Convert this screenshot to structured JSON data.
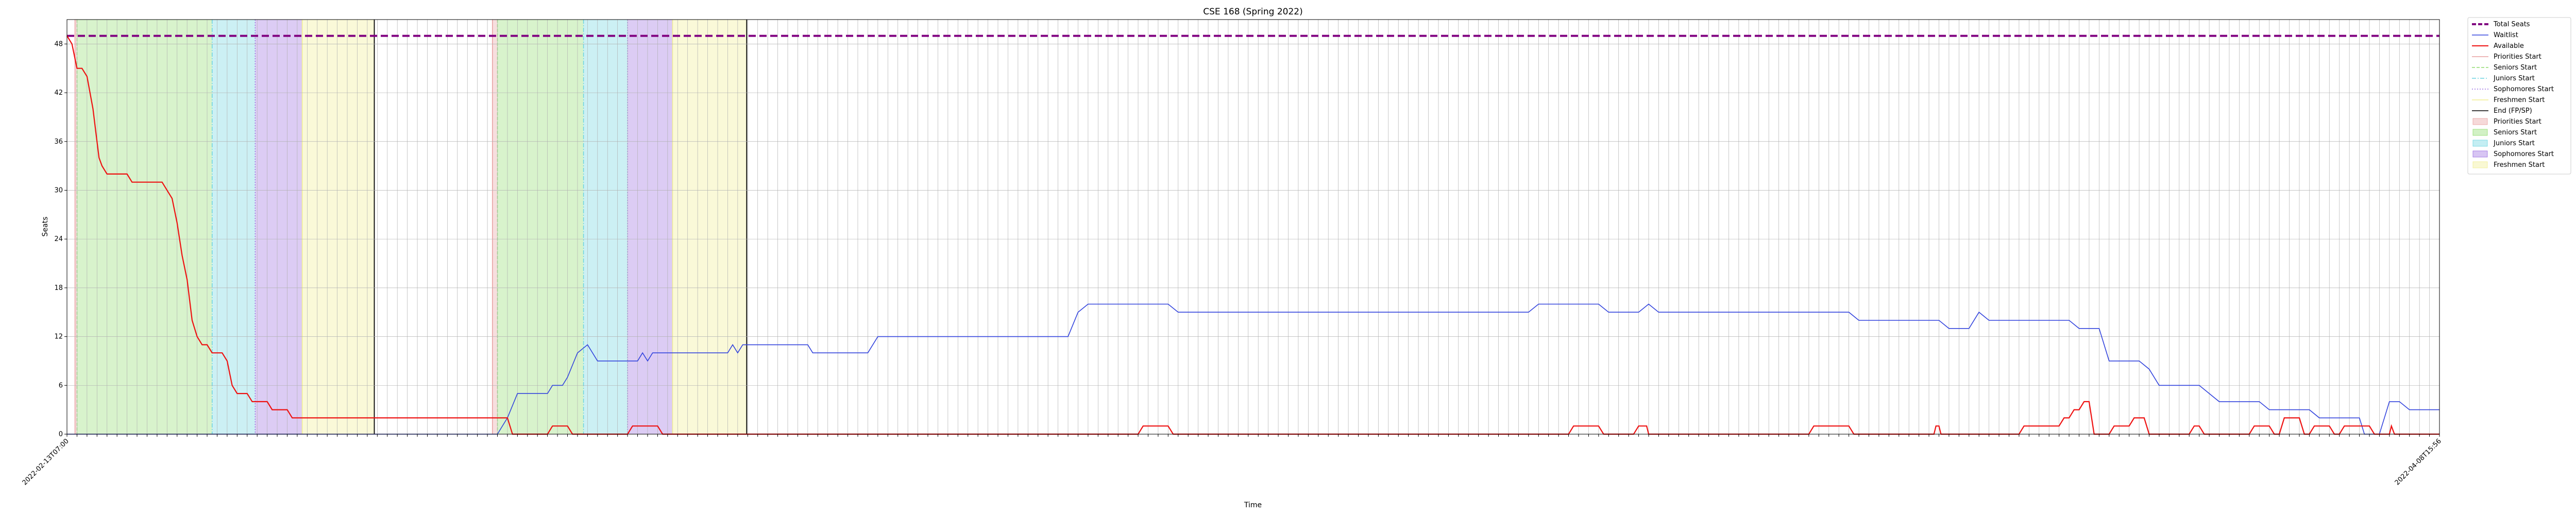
{
  "chart_data": {
    "type": "line",
    "title": "CSE 168 (Spring 2022)",
    "xlabel": "Time",
    "ylabel": "Seats",
    "ylim": [
      0,
      51
    ],
    "yticks": [
      0,
      6,
      12,
      18,
      24,
      30,
      36,
      42,
      48
    ],
    "grid": true,
    "legend_position": "outside-right",
    "x_axis": {
      "kind": "sequential-timestamps",
      "start_label": "2022-02-13T07:00",
      "end_label": "2022-04-08T15:56",
      "tick_count": 238,
      "xlim": [
        0,
        237
      ],
      "note_on_labels": "rotated timestamp tick labels (unreadable at this resolution)"
    },
    "colors": {
      "total_seats": "#800080",
      "waitlist": "#3344dd",
      "available": "#ee1111",
      "priorities": "#e8a0a0",
      "seniors": "#8fdc6e",
      "juniors": "#6cd4e0",
      "sophomores": "#9a6ee0",
      "freshmen": "#f0ee90",
      "end": "#000000",
      "grid": "#b0b0b0"
    },
    "series": [
      {
        "name": "Total Seats",
        "style": "dashed",
        "points": [
          [
            0,
            49
          ],
          [
            237,
            49
          ]
        ]
      },
      {
        "name": "Waitlist",
        "style": "solid",
        "points": [
          [
            0,
            0
          ],
          [
            43,
            0
          ],
          [
            44,
            2
          ],
          [
            45,
            5
          ],
          [
            48,
            5
          ],
          [
            48.5,
            6
          ],
          [
            49.5,
            6
          ],
          [
            50,
            7
          ],
          [
            51,
            10
          ],
          [
            52,
            11
          ],
          [
            53,
            9
          ],
          [
            57,
            9
          ],
          [
            57.5,
            10
          ],
          [
            58,
            9
          ],
          [
            58.5,
            10
          ],
          [
            66,
            10
          ],
          [
            66.5,
            11
          ],
          [
            67,
            10
          ],
          [
            67.5,
            11
          ],
          [
            74,
            11
          ],
          [
            74.5,
            10
          ],
          [
            80,
            10
          ],
          [
            81,
            12
          ],
          [
            100,
            12
          ],
          [
            101,
            15
          ],
          [
            102,
            16
          ],
          [
            110,
            16
          ],
          [
            111,
            15
          ],
          [
            146,
            15
          ],
          [
            147,
            16
          ],
          [
            153,
            16
          ],
          [
            154,
            15
          ],
          [
            157,
            15
          ],
          [
            158,
            16
          ],
          [
            159,
            15
          ],
          [
            178,
            15
          ],
          [
            179,
            14
          ],
          [
            187,
            14
          ],
          [
            188,
            13
          ],
          [
            190,
            13
          ],
          [
            191,
            15
          ],
          [
            192,
            14
          ],
          [
            200,
            14
          ],
          [
            201,
            13
          ],
          [
            203,
            13
          ],
          [
            204,
            9
          ],
          [
            207,
            9
          ],
          [
            208,
            8
          ],
          [
            209,
            6
          ],
          [
            213,
            6
          ],
          [
            214,
            5
          ],
          [
            215,
            4
          ],
          [
            219,
            4
          ],
          [
            220,
            3
          ],
          [
            224,
            3
          ],
          [
            225,
            2
          ],
          [
            229,
            2
          ],
          [
            229.5,
            0
          ],
          [
            231,
            0
          ],
          [
            232,
            4
          ],
          [
            233,
            4
          ],
          [
            234,
            3
          ],
          [
            237,
            3
          ]
        ]
      },
      {
        "name": "Available",
        "style": "solid",
        "points": [
          [
            0,
            49
          ],
          [
            0.5,
            48
          ],
          [
            1,
            45
          ],
          [
            1.5,
            45
          ],
          [
            2,
            44
          ],
          [
            2.3,
            42
          ],
          [
            2.6,
            40
          ],
          [
            2.9,
            37
          ],
          [
            3.2,
            34
          ],
          [
            3.5,
            33
          ],
          [
            4,
            32
          ],
          [
            6,
            32
          ],
          [
            6.5,
            31
          ],
          [
            9,
            31
          ],
          [
            9.5,
            31
          ],
          [
            10.5,
            29
          ],
          [
            11,
            26
          ],
          [
            11.5,
            22
          ],
          [
            12,
            19
          ],
          [
            12.5,
            14
          ],
          [
            13,
            12
          ],
          [
            13.5,
            11
          ],
          [
            14,
            11
          ],
          [
            14.5,
            10
          ],
          [
            15.5,
            10
          ],
          [
            16,
            9
          ],
          [
            16.5,
            6
          ],
          [
            17,
            5
          ],
          [
            18,
            5
          ],
          [
            18.5,
            4
          ],
          [
            20,
            4
          ],
          [
            20.5,
            3
          ],
          [
            22,
            3
          ],
          [
            22.5,
            2
          ],
          [
            44,
            2
          ],
          [
            44.5,
            0
          ],
          [
            48,
            0
          ],
          [
            48.5,
            1
          ],
          [
            50,
            1
          ],
          [
            50.5,
            0
          ],
          [
            56,
            0
          ],
          [
            56.5,
            1
          ],
          [
            59,
            1
          ],
          [
            59.5,
            0
          ],
          [
            107,
            0
          ],
          [
            107.5,
            1
          ],
          [
            110,
            1
          ],
          [
            110.5,
            0
          ],
          [
            150,
            0
          ],
          [
            150.5,
            1
          ],
          [
            153,
            1
          ],
          [
            153.5,
            0
          ],
          [
            156.5,
            0
          ],
          [
            157,
            1
          ],
          [
            157.8,
            1
          ],
          [
            158,
            0
          ],
          [
            174,
            0
          ],
          [
            174.5,
            1
          ],
          [
            178,
            1
          ],
          [
            178.5,
            0
          ],
          [
            186.5,
            0
          ],
          [
            186.7,
            1
          ],
          [
            187,
            1
          ],
          [
            187.2,
            0
          ],
          [
            195,
            0
          ],
          [
            195.5,
            1
          ],
          [
            199,
            1
          ],
          [
            199.5,
            2
          ],
          [
            200,
            2
          ],
          [
            200.5,
            3
          ],
          [
            201,
            3
          ],
          [
            201.5,
            4
          ],
          [
            202,
            4
          ],
          [
            202.5,
            0
          ],
          [
            203,
            0
          ],
          [
            203.5,
            0
          ],
          [
            204,
            0
          ],
          [
            204.5,
            1
          ],
          [
            206,
            1
          ],
          [
            206.5,
            2
          ],
          [
            207.5,
            2
          ],
          [
            208,
            0
          ],
          [
            212,
            0
          ],
          [
            212.5,
            1
          ],
          [
            213,
            1
          ],
          [
            213.5,
            0
          ],
          [
            218,
            0
          ],
          [
            218.5,
            1
          ],
          [
            220,
            1
          ],
          [
            220.5,
            0
          ],
          [
            221,
            0
          ],
          [
            221.5,
            2
          ],
          [
            223,
            2
          ],
          [
            223.5,
            0
          ],
          [
            224,
            0
          ],
          [
            224.5,
            1
          ],
          [
            226,
            1
          ],
          [
            226.5,
            0
          ],
          [
            227,
            0
          ],
          [
            227.5,
            1
          ],
          [
            230,
            1
          ],
          [
            230.5,
            0
          ],
          [
            232,
            0
          ],
          [
            232.2,
            1
          ],
          [
            232.5,
            0
          ],
          [
            237,
            0
          ]
        ]
      }
    ],
    "periods": [
      {
        "name": "Priorities Start",
        "x0": 0.8,
        "x1": 1.0,
        "group": 1
      },
      {
        "name": "Seniors Start",
        "x0": 1.0,
        "x1": 14.5,
        "group": 1
      },
      {
        "name": "Juniors Start",
        "x0": 14.5,
        "x1": 18.8,
        "group": 1
      },
      {
        "name": "Sophomores Start",
        "x0": 18.8,
        "x1": 23.5,
        "group": 1
      },
      {
        "name": "Freshmen Start",
        "x0": 23.5,
        "x1": 30.7,
        "group": 1
      },
      {
        "name": "Priorities Start",
        "x0": 42.5,
        "x1": 43.0,
        "group": 2
      },
      {
        "name": "Seniors Start",
        "x0": 43.0,
        "x1": 51.6,
        "group": 2
      },
      {
        "name": "Juniors Start",
        "x0": 51.6,
        "x1": 56.0,
        "group": 2
      },
      {
        "name": "Sophomores Start",
        "x0": 56.0,
        "x1": 60.5,
        "group": 2
      },
      {
        "name": "Freshmen Start",
        "x0": 60.5,
        "x1": 67.9,
        "group": 2
      }
    ],
    "end_lines": [
      30.7,
      67.9
    ],
    "legend": [
      {
        "label": "Total Seats",
        "kind": "line",
        "color_key": "total_seats",
        "dash": "8,4",
        "width": 4
      },
      {
        "label": "Waitlist",
        "kind": "line",
        "color_key": "waitlist",
        "dash": "",
        "width": 1.5
      },
      {
        "label": "Available",
        "kind": "line",
        "color_key": "available",
        "dash": "",
        "width": 2
      },
      {
        "label": "Priorities Start",
        "kind": "line",
        "color_key": "priorities",
        "dash": "",
        "width": 1.5
      },
      {
        "label": "Seniors Start",
        "kind": "line",
        "color_key": "seniors",
        "dash": "6,3",
        "width": 1.5
      },
      {
        "label": "Juniors Start",
        "kind": "line",
        "color_key": "juniors",
        "dash": "8,3,2,3",
        "width": 1.5
      },
      {
        "label": "Sophomores Start",
        "kind": "line",
        "color_key": "sophomores",
        "dash": "2,3",
        "width": 1.5
      },
      {
        "label": "Freshmen Start",
        "kind": "line",
        "color_key": "freshmen",
        "dash": "",
        "width": 1.5
      },
      {
        "label": "End (FP/SP)",
        "kind": "line",
        "color_key": "end",
        "dash": "",
        "width": 1.5
      },
      {
        "label": "Priorities Start",
        "kind": "patch",
        "color_key": "priorities"
      },
      {
        "label": "Seniors Start",
        "kind": "patch",
        "color_key": "seniors"
      },
      {
        "label": "Juniors Start",
        "kind": "patch",
        "color_key": "juniors"
      },
      {
        "label": "Sophomores Start",
        "kind": "patch",
        "color_key": "sophomores"
      },
      {
        "label": "Freshmen Start",
        "kind": "patch",
        "color_key": "freshmen"
      }
    ]
  }
}
